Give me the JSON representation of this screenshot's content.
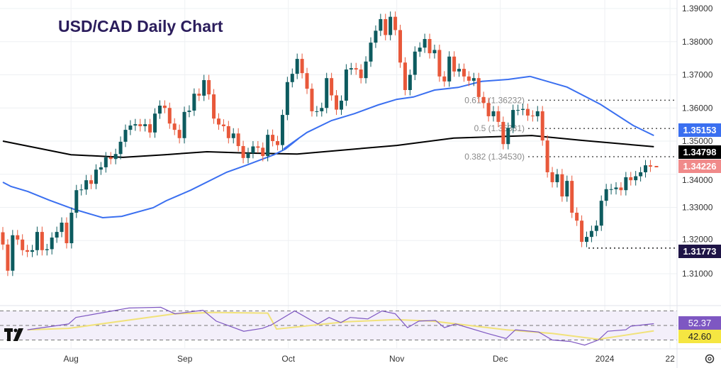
{
  "title": "USD/CAD Daily Chart",
  "colors": {
    "up": "#0d5b5f",
    "down": "#e8583a",
    "ma50": "#3a6ff0",
    "ma200": "#000000",
    "rsi": "#7e57c2",
    "rsi_ma": "#f1e27a",
    "title": "#2b1d5c",
    "low_tag": "#1e1446",
    "price_tag": "#f08a8a"
  },
  "chart_data": {
    "type": "candlestick",
    "title": "USD/CAD Daily Chart",
    "ylim": [
      1.3,
      1.39
    ],
    "y_ticks": [
      "1.31000",
      "1.32000",
      "1.33000",
      "1.34000",
      "1.35000",
      "1.36000",
      "1.37000",
      "1.38000",
      "1.39000"
    ],
    "x_ticks": [
      {
        "label": "Aug",
        "index": 13.9
      },
      {
        "label": "Sep",
        "index": 37.1
      },
      {
        "label": "Oct",
        "index": 58.2
      },
      {
        "label": "Nov",
        "index": 80.3
      },
      {
        "label": "Dec",
        "index": 101.4
      },
      {
        "label": "2024",
        "index": 122.7
      },
      {
        "label": "22",
        "index": 136.0
      }
    ],
    "note_open": "open = previous close",
    "wick": 0.0016,
    "first_open": 1.3225,
    "closes": [
      1.3188,
      1.3109,
      1.3216,
      1.3203,
      1.3171,
      1.3166,
      1.3171,
      1.3226,
      1.3171,
      1.3174,
      1.3209,
      1.3226,
      1.3254,
      1.3192,
      1.3284,
      1.3352,
      1.3354,
      1.3382,
      1.3371,
      1.3414,
      1.3421,
      1.3451,
      1.3446,
      1.3461,
      1.3498,
      1.3534,
      1.3547,
      1.3551,
      1.3545,
      1.3551,
      1.3526,
      1.3583,
      1.3607,
      1.36,
      1.3553,
      1.3534,
      1.3509,
      1.3588,
      1.3592,
      1.3643,
      1.3637,
      1.3684,
      1.3641,
      1.3568,
      1.355,
      1.3545,
      1.3509,
      1.3523,
      1.3485,
      1.3449,
      1.3464,
      1.3484,
      1.348,
      1.3455,
      1.3519,
      1.35,
      1.3488,
      1.3579,
      1.3678,
      1.3703,
      1.3748,
      1.3705,
      1.3658,
      1.359,
      1.359,
      1.36,
      1.369,
      1.3638,
      1.3595,
      1.3622,
      1.3716,
      1.372,
      1.3716,
      1.369,
      1.374,
      1.3797,
      1.3833,
      1.3868,
      1.382,
      1.3875,
      1.3835,
      1.3737,
      1.3654,
      1.37,
      1.377,
      1.3782,
      1.3808,
      1.3765,
      1.3775,
      1.3695,
      1.368,
      1.3755,
      1.371,
      1.3718,
      1.3695,
      1.3682,
      1.369,
      1.3633,
      1.3615,
      1.3575,
      1.359,
      1.3558,
      1.3491,
      1.354,
      1.3594,
      1.3594,
      1.3597,
      1.3577,
      1.3575,
      1.359,
      1.3502,
      1.3406,
      1.3376,
      1.34,
      1.3333,
      1.338,
      1.3284,
      1.326,
      1.3196,
      1.3211,
      1.3229,
      1.3245,
      1.332,
      1.3355,
      1.3355,
      1.336,
      1.3352,
      1.3391,
      1.3382,
      1.3394,
      1.3406,
      1.3427,
      1.3423
    ],
    "ma50": [
      [
        0,
        1.3376
      ],
      [
        5,
        1.3363
      ],
      [
        15.3,
        1.3348
      ],
      [
        28.3,
        1.3322
      ],
      [
        43.2,
        1.3295
      ],
      [
        61.1,
        1.3269
      ],
      [
        72.8,
        1.3273
      ],
      [
        92,
        1.3299
      ],
      [
        100,
        1.332
      ],
      [
        115,
        1.3352
      ],
      [
        137,
        1.3406
      ],
      [
        149,
        1.3427
      ],
      [
        166,
        1.3459
      ],
      [
        173,
        1.3476
      ],
      [
        181,
        1.3508
      ]
    ],
    "ma50_b": [
      [
        57.2,
        1.3476
      ],
      [
        62,
        1.3526
      ],
      [
        67,
        1.3562
      ],
      [
        71.7,
        1.3583
      ],
      [
        76.5,
        1.3609
      ],
      [
        80.3,
        1.3626
      ],
      [
        83.7,
        1.3633
      ],
      [
        88,
        1.3654
      ],
      [
        92.8,
        1.3662
      ],
      [
        97.6,
        1.368
      ],
      [
        103,
        1.3686
      ],
      [
        107.5,
        1.3695
      ],
      [
        107.5,
        1.3695
      ]
    ],
    "ma200": [
      [
        0,
        1.35
      ],
      [
        13.9,
        1.3459
      ],
      [
        24.5,
        1.3451
      ],
      [
        33,
        1.3459
      ],
      [
        41.6,
        1.3468
      ],
      [
        49.3,
        1.3464
      ],
      [
        60,
        1.3461
      ],
      [
        80.3,
        1.3487
      ],
      [
        91.9,
        1.3509
      ],
      [
        107.8,
        1.3517
      ],
      [
        118.3,
        1.3502
      ],
      [
        132.7,
        1.3483
      ]
    ],
    "ma50_end": [
      [
        107.5,
        1.3695
      ],
      [
        115,
        1.3663
      ],
      [
        121.8,
        1.3611
      ],
      [
        128.5,
        1.3547
      ],
      [
        132.7,
        1.3517
      ]
    ],
    "fib_levels": [
      {
        "label": "0.618 (1.36232)",
        "value": 1.36232
      },
      {
        "label": "0.5 (1.35381)",
        "value": 1.35381
      },
      {
        "label": "0.382 (1.34530)",
        "value": 1.3453
      }
    ],
    "low_line": {
      "value": 1.31773
    },
    "price_tags": {
      "ma50": "1.35153",
      "ma200": "1.34798",
      "last": "1.34226",
      "low": "1.31773"
    },
    "rsi": {
      "levels": [
        70,
        50,
        30
      ],
      "values_label": "52.37",
      "ma_label": "42.60",
      "series": [
        [
          5,
          44
        ],
        [
          13.4,
          52
        ],
        [
          14.9,
          61
        ],
        [
          25.7,
          74
        ],
        [
          32.2,
          75
        ],
        [
          35.1,
          66
        ],
        [
          40.8,
          71
        ],
        [
          43.5,
          56
        ],
        [
          49.1,
          42
        ],
        [
          52.9,
          46
        ],
        [
          54.8,
          51
        ],
        [
          59.5,
          70
        ],
        [
          64.2,
          52
        ],
        [
          66.5,
          61
        ],
        [
          68.9,
          54
        ],
        [
          70.8,
          61
        ],
        [
          74.4,
          59
        ],
        [
          77.3,
          70
        ],
        [
          80,
          66
        ],
        [
          82.5,
          47
        ],
        [
          84.8,
          56
        ],
        [
          88.2,
          57
        ],
        [
          90,
          47
        ],
        [
          92.3,
          52
        ],
        [
          98.8,
          39
        ],
        [
          102.6,
          32
        ],
        [
          104.5,
          44
        ],
        [
          109.2,
          41
        ],
        [
          112,
          30
        ],
        [
          115.7,
          28
        ],
        [
          118.6,
          23
        ],
        [
          121.4,
          30
        ],
        [
          123.3,
          42
        ],
        [
          127,
          44
        ],
        [
          128,
          49
        ],
        [
          132.7,
          52.4
        ]
      ],
      "ma": [
        [
          5,
          44
        ],
        [
          13.4,
          46
        ],
        [
          35,
          66
        ],
        [
          43,
          68
        ],
        [
          54,
          67
        ],
        [
          55.8,
          45
        ],
        [
          69.8,
          55
        ],
        [
          80,
          58
        ],
        [
          87.6,
          56
        ],
        [
          102.6,
          44
        ],
        [
          112,
          39
        ],
        [
          121.4,
          31
        ],
        [
          132.7,
          42.6
        ]
      ]
    }
  }
}
